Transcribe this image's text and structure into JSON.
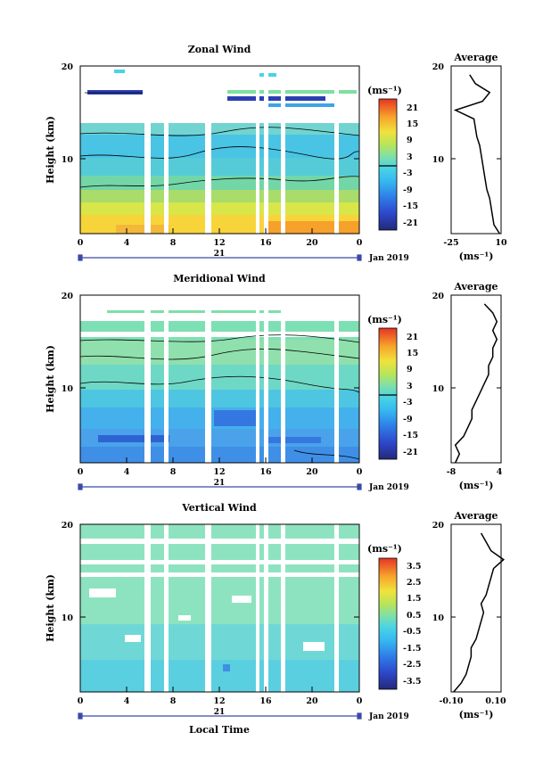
{
  "figure": {
    "x_axis_label": "Local Time",
    "date_label": "Jan 2019",
    "day_label": "21"
  },
  "chart_data": [
    {
      "type": "heatmap",
      "title": "Zonal Wind",
      "ylabel": "Height (km)",
      "xlabel": "Local Time",
      "x_ticks": [
        "0",
        "4",
        "8",
        "12",
        "16",
        "20",
        "0"
      ],
      "xlim_hours": [
        0,
        24
      ],
      "y_ticks": [
        "10",
        "20"
      ],
      "ylim_km": [
        1,
        20
      ],
      "colorbar": {
        "unit": "(ms⁻¹)",
        "ticks": [
          "21",
          "15",
          "9",
          "3",
          "-3",
          "-9",
          "-15",
          "-21"
        ],
        "range": [
          -24,
          24
        ]
      },
      "average_panel": {
        "title": "Average",
        "x_ticks": [
          "-25",
          "10"
        ],
        "xlim": [
          -25,
          10
        ],
        "unit": "(ms⁻¹)",
        "profile_height_km": [
          1,
          2,
          3,
          4,
          5,
          6,
          7,
          8,
          9,
          10,
          11,
          12,
          13,
          14,
          15,
          16,
          17,
          18,
          19
        ],
        "profile_value": [
          9,
          5,
          4,
          3,
          2,
          0,
          -1,
          -2,
          -3,
          -4,
          -5,
          -7,
          -8,
          -9,
          -22,
          -3,
          2,
          -8,
          -12
        ]
      }
    },
    {
      "type": "heatmap",
      "title": "Meridional Wind",
      "ylabel": "Height (km)",
      "xlabel": "Local Time",
      "x_ticks": [
        "0",
        "4",
        "8",
        "12",
        "16",
        "20",
        "0"
      ],
      "xlim_hours": [
        0,
        24
      ],
      "y_ticks": [
        "10",
        "20"
      ],
      "ylim_km": [
        1,
        20
      ],
      "colorbar": {
        "unit": "(ms⁻¹)",
        "ticks": [
          "21",
          "15",
          "9",
          "3",
          "-3",
          "-9",
          "-15",
          "-21"
        ],
        "range": [
          -24,
          24
        ]
      },
      "average_panel": {
        "title": "Average",
        "x_ticks": [
          "-8",
          "4"
        ],
        "xlim": [
          -8,
          4
        ],
        "unit": "(ms⁻¹)",
        "profile_height_km": [
          1,
          2,
          3,
          4,
          5,
          6,
          7,
          8,
          9,
          10,
          11,
          12,
          13,
          14,
          15,
          16,
          17,
          18,
          19
        ],
        "profile_value": [
          -7,
          -6,
          -7,
          -5,
          -4,
          -3,
          -3,
          -2,
          -1,
          0,
          1,
          1,
          2,
          2,
          3,
          2,
          3,
          2,
          0
        ]
      }
    },
    {
      "type": "heatmap",
      "title": "Vertical Wind",
      "ylabel": "Height (km)",
      "xlabel": "Local Time",
      "x_ticks": [
        "0",
        "4",
        "8",
        "12",
        "16",
        "20",
        "0"
      ],
      "xlim_hours": [
        0,
        24
      ],
      "y_ticks": [
        "10",
        "20"
      ],
      "ylim_km": [
        1,
        20
      ],
      "colorbar": {
        "unit": "(ms⁻¹)",
        "ticks": [
          "3.5",
          "2.5",
          "1.5",
          "0.5",
          "-0.5",
          "-1.5",
          "-2.5",
          "-3.5"
        ],
        "range": [
          -4,
          4
        ]
      },
      "average_panel": {
        "title": "Average",
        "x_ticks": [
          "-0.10",
          "0.10"
        ],
        "xlim": [
          -0.1,
          0.1
        ],
        "unit": "(ms⁻¹)",
        "profile_height_km": [
          1,
          2,
          3,
          4,
          5,
          6,
          7,
          8,
          9,
          10,
          11,
          12,
          13,
          14,
          15,
          16,
          17,
          18,
          19
        ],
        "profile_value": [
          -0.09,
          -0.06,
          -0.04,
          -0.03,
          -0.02,
          -0.02,
          0,
          0.01,
          0.02,
          0.03,
          0.02,
          0.04,
          0.05,
          0.06,
          0.07,
          0.11,
          0.06,
          0.04,
          0.02
        ]
      }
    }
  ]
}
